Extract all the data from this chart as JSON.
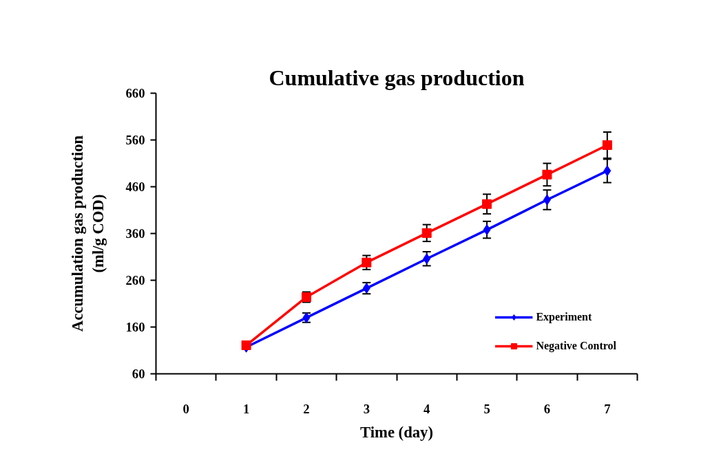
{
  "chart_data": {
    "type": "line",
    "title": "Cumulative gas production",
    "xlabel": "Time (day)",
    "ylabel": "Accumulation gas production\n(ml/g COD)",
    "categories": [
      "0",
      "1",
      "2",
      "3",
      "4",
      "5",
      "6",
      "7"
    ],
    "series": [
      {
        "name": "Experiment",
        "color": "#0000ff",
        "marker": "diamond",
        "values": [
          null,
          117,
          180,
          243,
          306,
          368,
          432,
          494
        ],
        "errors": [
          null,
          null,
          10,
          12,
          15,
          18,
          21,
          25
        ]
      },
      {
        "name": "Negative Control",
        "color": "#ff0000",
        "marker": "square",
        "values": [
          null,
          121,
          224,
          298,
          361,
          423,
          486,
          549
        ],
        "errors": [
          null,
          null,
          11,
          15,
          18,
          21,
          24,
          28
        ]
      }
    ],
    "ylim": [
      60,
      660
    ],
    "yticks": [
      60,
      160,
      260,
      360,
      460,
      560,
      660
    ],
    "grid": false,
    "legend": "bottom right",
    "line_style": "solid"
  }
}
